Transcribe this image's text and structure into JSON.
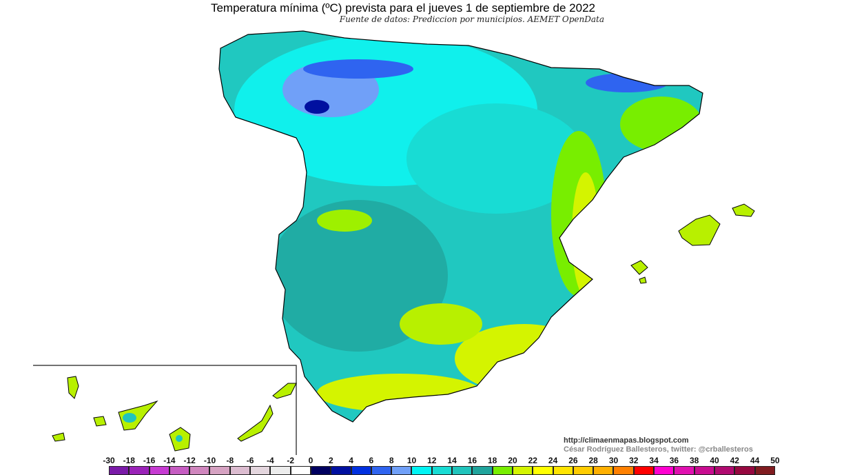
{
  "title": "Temperatura mínima (ºC) prevista para el jueves 1 de septiembre de 2022",
  "subtitle": "Fuente de datos: Prediccion por municipios. AEMET OpenData",
  "credits": {
    "url": "http://climaenmapas.blogspot.com",
    "author": "César Rodríguez Ballesteros, twitter: @crballesteros"
  },
  "legend": {
    "unit": "ºC",
    "labels": [
      "-30",
      "-18",
      "-16",
      "-14",
      "-12",
      "-10",
      "-8",
      "-6",
      "-4",
      "-2",
      "0",
      "2",
      "4",
      "6",
      "8",
      "10",
      "12",
      "14",
      "16",
      "18",
      "20",
      "22",
      "24",
      "26",
      "28",
      "30",
      "32",
      "34",
      "36",
      "38",
      "40",
      "42",
      "44",
      "50"
    ],
    "colors": [
      "#7a1aa8",
      "#9a22b8",
      "#c63ad2",
      "#c65cc2",
      "#d086be",
      "#d6a2c2",
      "#dcbcd0",
      "#e4d6de",
      "#ececec",
      "#ffffff",
      "#000060",
      "#0010a0",
      "#0030e0",
      "#2f64f0",
      "#70a0f8",
      "#00f4f4",
      "#18dcd4",
      "#20c4bc",
      "#20a49c",
      "#78ee00",
      "#d4f400",
      "#ffff00",
      "#ffe400",
      "#ffcc00",
      "#ffb000",
      "#ff8000",
      "#ff0000",
      "#ff00d0",
      "#e010b0",
      "#c80c90",
      "#b00a70",
      "#960840",
      "#801c20"
    ]
  },
  "map_colors": {
    "sea": "#ffffff",
    "border": "#000000"
  }
}
